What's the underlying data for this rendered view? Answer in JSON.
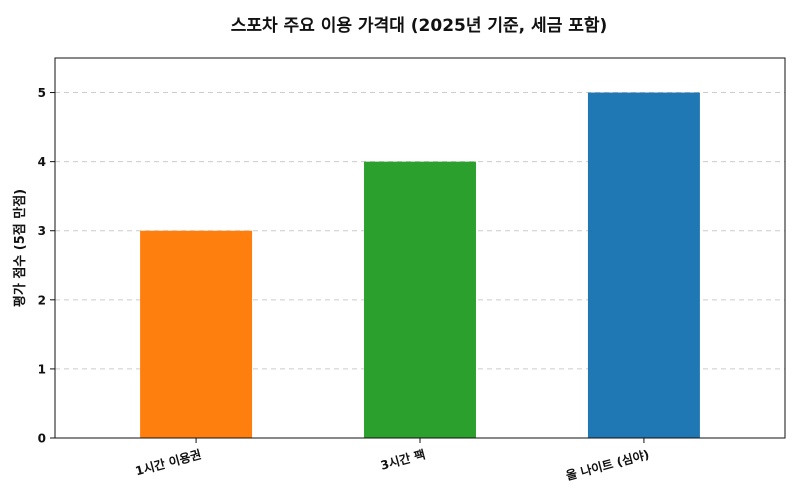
{
  "chart_data": {
    "type": "bar",
    "title": "스포차 주요 이용 가격대 (2025년 기준, 세금 포함)",
    "xlabel": "",
    "ylabel": "평가 점수 (5점 만점)",
    "categories": [
      "1시간 이용권",
      "3시간 팩",
      "올 나이트 (심야)"
    ],
    "values": [
      3,
      4,
      5
    ],
    "colors": [
      "#ff7f0e",
      "#2ca02c",
      "#1f77b4"
    ],
    "ylim": [
      0,
      5.5
    ],
    "yticks": [
      "0",
      "1",
      "2",
      "3",
      "4",
      "5"
    ],
    "grid": true,
    "legend": "none"
  }
}
